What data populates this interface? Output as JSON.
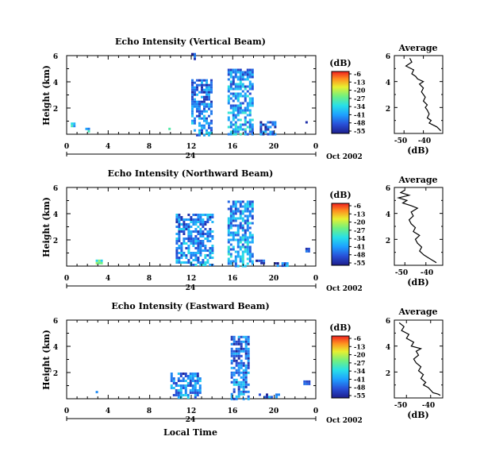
{
  "chart_data": [
    {
      "type": "heatmap",
      "title": "Echo Intensity (Vertical Beam)",
      "ylabel": "Height (km)",
      "ylim": [
        0,
        6
      ],
      "y_ticks": [
        "6",
        "4",
        "2"
      ],
      "x_ticks": [
        "0",
        "4",
        "8",
        "12",
        "16",
        "20",
        "0"
      ],
      "xlim": [
        0,
        24
      ],
      "day_label": "24",
      "date_label": "Oct 2002",
      "colorbar": {
        "unit": "(dB)",
        "ticks": [
          "-6",
          "-13",
          "-20",
          "-27",
          "-34",
          "-41",
          "-48",
          "-55"
        ],
        "range": [
          -55,
          -6
        ]
      },
      "echoes": [
        {
          "x": [
            12.0,
            14.0
          ],
          "y": [
            0.0,
            4.2
          ],
          "dB": -45
        },
        {
          "x": [
            15.5,
            18.0
          ],
          "y": [
            0.0,
            5.0
          ],
          "dB": -42
        },
        {
          "x": [
            18.6,
            20.0
          ],
          "y": [
            0.0,
            1.0
          ],
          "dB": -48
        },
        {
          "x": [
            12.0,
            12.4
          ],
          "y": [
            5.8,
            6.2
          ],
          "dB": -50
        },
        {
          "x": [
            0.4,
            0.8
          ],
          "y": [
            0.6,
            0.9
          ],
          "dB": -38
        },
        {
          "x": [
            1.8,
            2.2
          ],
          "y": [
            0.3,
            0.5
          ],
          "dB": -35
        },
        {
          "x": [
            9.8,
            10.2
          ],
          "y": [
            0.3,
            0.5
          ],
          "dB": -30
        },
        {
          "x": [
            23.0,
            23.4
          ],
          "y": [
            0.8,
            1.0
          ],
          "dB": -48
        }
      ]
    },
    {
      "type": "heatmap",
      "title": "Echo Intensity (Northward Beam)",
      "ylabel": "Height (km)",
      "ylim": [
        0,
        6
      ],
      "y_ticks": [
        "6",
        "4",
        "2"
      ],
      "x_ticks": [
        "0",
        "4",
        "8",
        "12",
        "16",
        "20",
        "0"
      ],
      "xlim": [
        0,
        24
      ],
      "day_label": "24",
      "date_label": "Oct 2002",
      "colorbar": {
        "unit": "(dB)",
        "ticks": [
          "-6",
          "-13",
          "-20",
          "-27",
          "-34",
          "-41",
          "-48",
          "-55"
        ],
        "range": [
          -55,
          -6
        ]
      },
      "echoes": [
        {
          "x": [
            10.5,
            14.0
          ],
          "y": [
            0.0,
            4.0
          ],
          "dB": -44
        },
        {
          "x": [
            15.5,
            18.0
          ],
          "y": [
            0.0,
            5.0
          ],
          "dB": -42
        },
        {
          "x": [
            2.8,
            3.4
          ],
          "y": [
            0.3,
            0.5
          ],
          "dB": -30
        },
        {
          "x": [
            18.2,
            19.0
          ],
          "y": [
            0.2,
            0.5
          ],
          "dB": -48
        },
        {
          "x": [
            20.0,
            21.2
          ],
          "y": [
            0.1,
            0.3
          ],
          "dB": -48
        },
        {
          "x": [
            23.0,
            23.4
          ],
          "y": [
            1.2,
            1.4
          ],
          "dB": -48
        }
      ]
    },
    {
      "type": "heatmap",
      "title": "Echo Intensity (Eastward Beam)",
      "ylabel": "Height (km)",
      "xlabel": "Local Time",
      "ylim": [
        0,
        6
      ],
      "y_ticks": [
        "6",
        "4",
        "2"
      ],
      "x_ticks": [
        "0",
        "4",
        "8",
        "12",
        "16",
        "20",
        "0"
      ],
      "xlim": [
        0,
        24
      ],
      "day_label": "24",
      "date_label": "Oct 2002",
      "colorbar": {
        "unit": "(dB)",
        "ticks": [
          "-6",
          "-13",
          "-20",
          "-27",
          "-34",
          "-41",
          "-48",
          "-55"
        ],
        "range": [
          -55,
          -6
        ]
      },
      "echoes": [
        {
          "x": [
            10.0,
            12.8
          ],
          "y": [
            0.0,
            2.0
          ],
          "dB": -45
        },
        {
          "x": [
            15.8,
            17.6
          ],
          "y": [
            0.0,
            4.8
          ],
          "dB": -46
        },
        {
          "x": [
            18.5,
            20.5
          ],
          "y": [
            0.1,
            0.4
          ],
          "dB": -48
        },
        {
          "x": [
            2.8,
            3.2
          ],
          "y": [
            0.4,
            0.6
          ],
          "dB": -50
        },
        {
          "x": [
            22.8,
            23.4
          ],
          "y": [
            1.2,
            1.4
          ],
          "dB": -48
        }
      ]
    },
    {
      "type": "line",
      "title": "Average",
      "xlabel": "(dB)",
      "xlim": [
        -55,
        -30
      ],
      "ylim": [
        0,
        6
      ],
      "x_ticks": [
        "-50",
        "-40"
      ],
      "y_ticks": [
        "6",
        "4",
        "2"
      ],
      "series": [
        {
          "x": [
            -47,
            -46,
            -49,
            -45,
            -46,
            -44,
            -43,
            -40,
            -42,
            -40,
            -41,
            -40,
            -39,
            -40,
            -38,
            -39,
            -38,
            -37,
            -38,
            -36,
            -37,
            -33,
            -31
          ],
          "y": [
            5.8,
            5.5,
            5.2,
            4.9,
            4.6,
            4.4,
            4.2,
            4.0,
            3.8,
            3.5,
            3.2,
            3.0,
            2.8,
            2.5,
            2.2,
            2.0,
            1.8,
            1.5,
            1.2,
            1.0,
            0.8,
            0.5,
            0.2
          ]
        }
      ]
    },
    {
      "type": "line",
      "title": "Average",
      "xlabel": "(dB)",
      "xlim": [
        -55,
        -32
      ],
      "ylim": [
        0,
        6
      ],
      "x_ticks": [
        "-50",
        "-40"
      ],
      "y_ticks": [
        "6",
        "4",
        "2"
      ],
      "series": [
        {
          "x": [
            -50,
            -52,
            -48,
            -53,
            -49,
            -51,
            -47,
            -44,
            -47,
            -46,
            -48,
            -47,
            -45,
            -46,
            -43,
            -45,
            -44,
            -42,
            -43,
            -41,
            -39,
            -37,
            -35
          ],
          "y": [
            5.8,
            5.6,
            5.4,
            5.2,
            5.0,
            4.8,
            4.6,
            4.4,
            4.1,
            3.8,
            3.5,
            3.2,
            2.9,
            2.6,
            2.3,
            2.0,
            1.7,
            1.4,
            1.1,
            0.8,
            0.6,
            0.4,
            0.2
          ]
        }
      ]
    },
    {
      "type": "line",
      "title": "Average",
      "xlabel": "(dB)",
      "xlim": [
        -55,
        -35
      ],
      "ylim": [
        0,
        6
      ],
      "x_ticks": [
        "-50",
        "-40"
      ],
      "y_ticks": [
        "6",
        "4",
        "2"
      ],
      "series": [
        {
          "x": [
            -53,
            -51,
            -52,
            -49,
            -50,
            -47,
            -48,
            -44,
            -46,
            -45,
            -47,
            -46,
            -44,
            -45,
            -43,
            -44,
            -42,
            -43,
            -41,
            -40,
            -39,
            -37,
            -36
          ],
          "y": [
            5.8,
            5.5,
            5.2,
            4.9,
            4.6,
            4.3,
            4.0,
            3.8,
            3.6,
            3.3,
            3.0,
            2.7,
            2.4,
            2.1,
            1.8,
            1.5,
            1.2,
            1.0,
            0.8,
            0.6,
            0.4,
            0.3,
            0.2
          ]
        }
      ]
    }
  ]
}
